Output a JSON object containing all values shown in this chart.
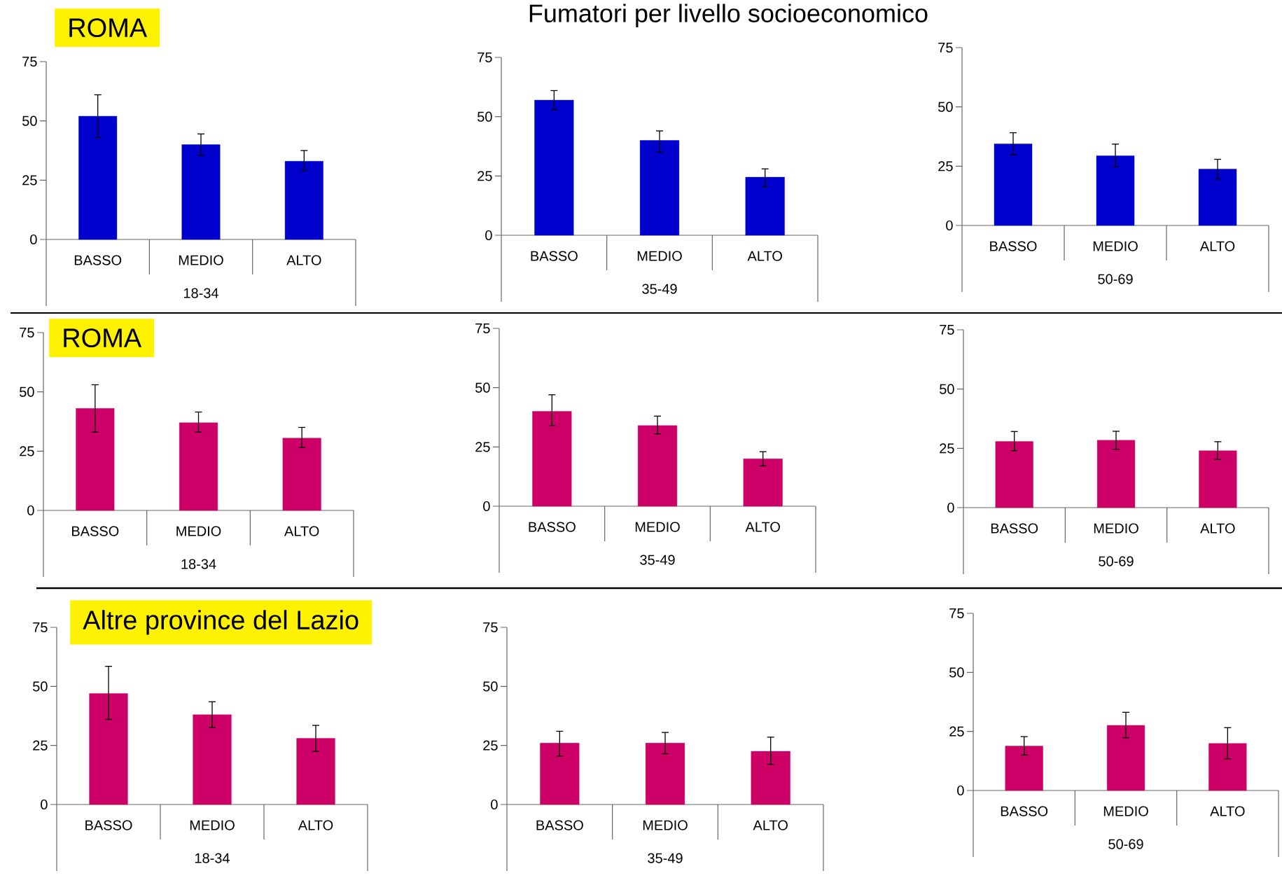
{
  "chart_data": [
    {
      "type": "bar",
      "annotations": [
        "ROMA"
      ],
      "categories": [
        "BASSO",
        "MEDIO",
        "ALTO"
      ],
      "xlabel": "18-34",
      "color": "#0000cc",
      "values": [
        52,
        40,
        33
      ],
      "errors": [
        [
          43,
          61
        ],
        [
          35.5,
          44.5
        ],
        [
          29,
          37.5
        ]
      ],
      "ylim": [
        0,
        75
      ],
      "yticks": [
        0,
        25,
        50,
        75
      ]
    },
    {
      "type": "bar",
      "title": "Fumatori per livello socioeconomico",
      "categories": [
        "BASSO",
        "MEDIO",
        "ALTO"
      ],
      "xlabel": "35-49",
      "color": "#0000cc",
      "values": [
        57,
        40,
        24.5
      ],
      "errors": [
        [
          53,
          61
        ],
        [
          35,
          44
        ],
        [
          20.5,
          28
        ]
      ],
      "ylim": [
        0,
        75
      ],
      "yticks": [
        0,
        25,
        50,
        75
      ]
    },
    {
      "type": "bar",
      "categories": [
        "BASSO",
        "MEDIO",
        "ALTO"
      ],
      "xlabel": "50-69",
      "color": "#0000cc",
      "values": [
        34.4,
        29.4,
        23.8
      ],
      "errors": [
        [
          29.8,
          39.1
        ],
        [
          24.8,
          34.3
        ],
        [
          19.5,
          27.9
        ]
      ],
      "ylim": [
        0,
        75
      ],
      "yticks": [
        0,
        25,
        50,
        75
      ]
    },
    {
      "type": "bar",
      "annotations": [
        "ROMA"
      ],
      "categories": [
        "BASSO",
        "MEDIO",
        "ALTO"
      ],
      "xlabel": "18-34",
      "color": "#cc0066",
      "values": [
        43,
        37,
        30.5
      ],
      "errors": [
        [
          33,
          53
        ],
        [
          33,
          41.5
        ],
        [
          26.5,
          35
        ]
      ],
      "ylim": [
        0,
        75
      ],
      "yticks": [
        0,
        25,
        50,
        75
      ]
    },
    {
      "type": "bar",
      "categories": [
        "BASSO",
        "MEDIO",
        "ALTO"
      ],
      "xlabel": "35-49",
      "color": "#cc0066",
      "values": [
        40,
        34,
        20
      ],
      "errors": [
        [
          34,
          47
        ],
        [
          30.5,
          38
        ],
        [
          17,
          23
        ]
      ],
      "ylim": [
        0,
        75
      ],
      "yticks": [
        0,
        25,
        50,
        75
      ]
    },
    {
      "type": "bar",
      "categories": [
        "BASSO",
        "MEDIO",
        "ALTO"
      ],
      "xlabel": "50-69",
      "color": "#cc0066",
      "values": [
        27.9,
        28.4,
        24
      ],
      "errors": [
        [
          24,
          32.1
        ],
        [
          24.6,
          32.2
        ],
        [
          20.3,
          27.8
        ]
      ],
      "ylim": [
        0,
        75
      ],
      "yticks": [
        0,
        25,
        50,
        75
      ]
    },
    {
      "type": "bar",
      "annotations": [
        "Altre province del Lazio"
      ],
      "categories": [
        "BASSO",
        "MEDIO",
        "ALTO"
      ],
      "xlabel": "18-34",
      "color": "#cc0066",
      "values": [
        47,
        38,
        28
      ],
      "errors": [
        [
          36,
          58.5
        ],
        [
          32.5,
          43.5
        ],
        [
          22.5,
          33.5
        ]
      ],
      "ylim": [
        0,
        75
      ],
      "yticks": [
        0,
        25,
        50,
        75
      ]
    },
    {
      "type": "bar",
      "categories": [
        "BASSO",
        "MEDIO",
        "ALTO"
      ],
      "xlabel": "35-49",
      "color": "#cc0066",
      "values": [
        26,
        26,
        22.5
      ],
      "errors": [
        [
          20.5,
          31
        ],
        [
          21.5,
          30.5
        ],
        [
          17,
          28.5
        ]
      ],
      "ylim": [
        0,
        75
      ],
      "yticks": [
        0,
        25,
        50,
        75
      ]
    },
    {
      "type": "bar",
      "categories": [
        "BASSO",
        "MEDIO",
        "ALTO"
      ],
      "xlabel": "50-69",
      "color": "#cc0066",
      "values": [
        18.8,
        27.6,
        19.9
      ],
      "errors": [
        [
          15,
          22.8
        ],
        [
          22.3,
          33.1
        ],
        [
          13.4,
          26.6
        ]
      ],
      "ylim": [
        0,
        75
      ],
      "yticks": [
        0,
        25,
        50,
        75
      ]
    }
  ]
}
